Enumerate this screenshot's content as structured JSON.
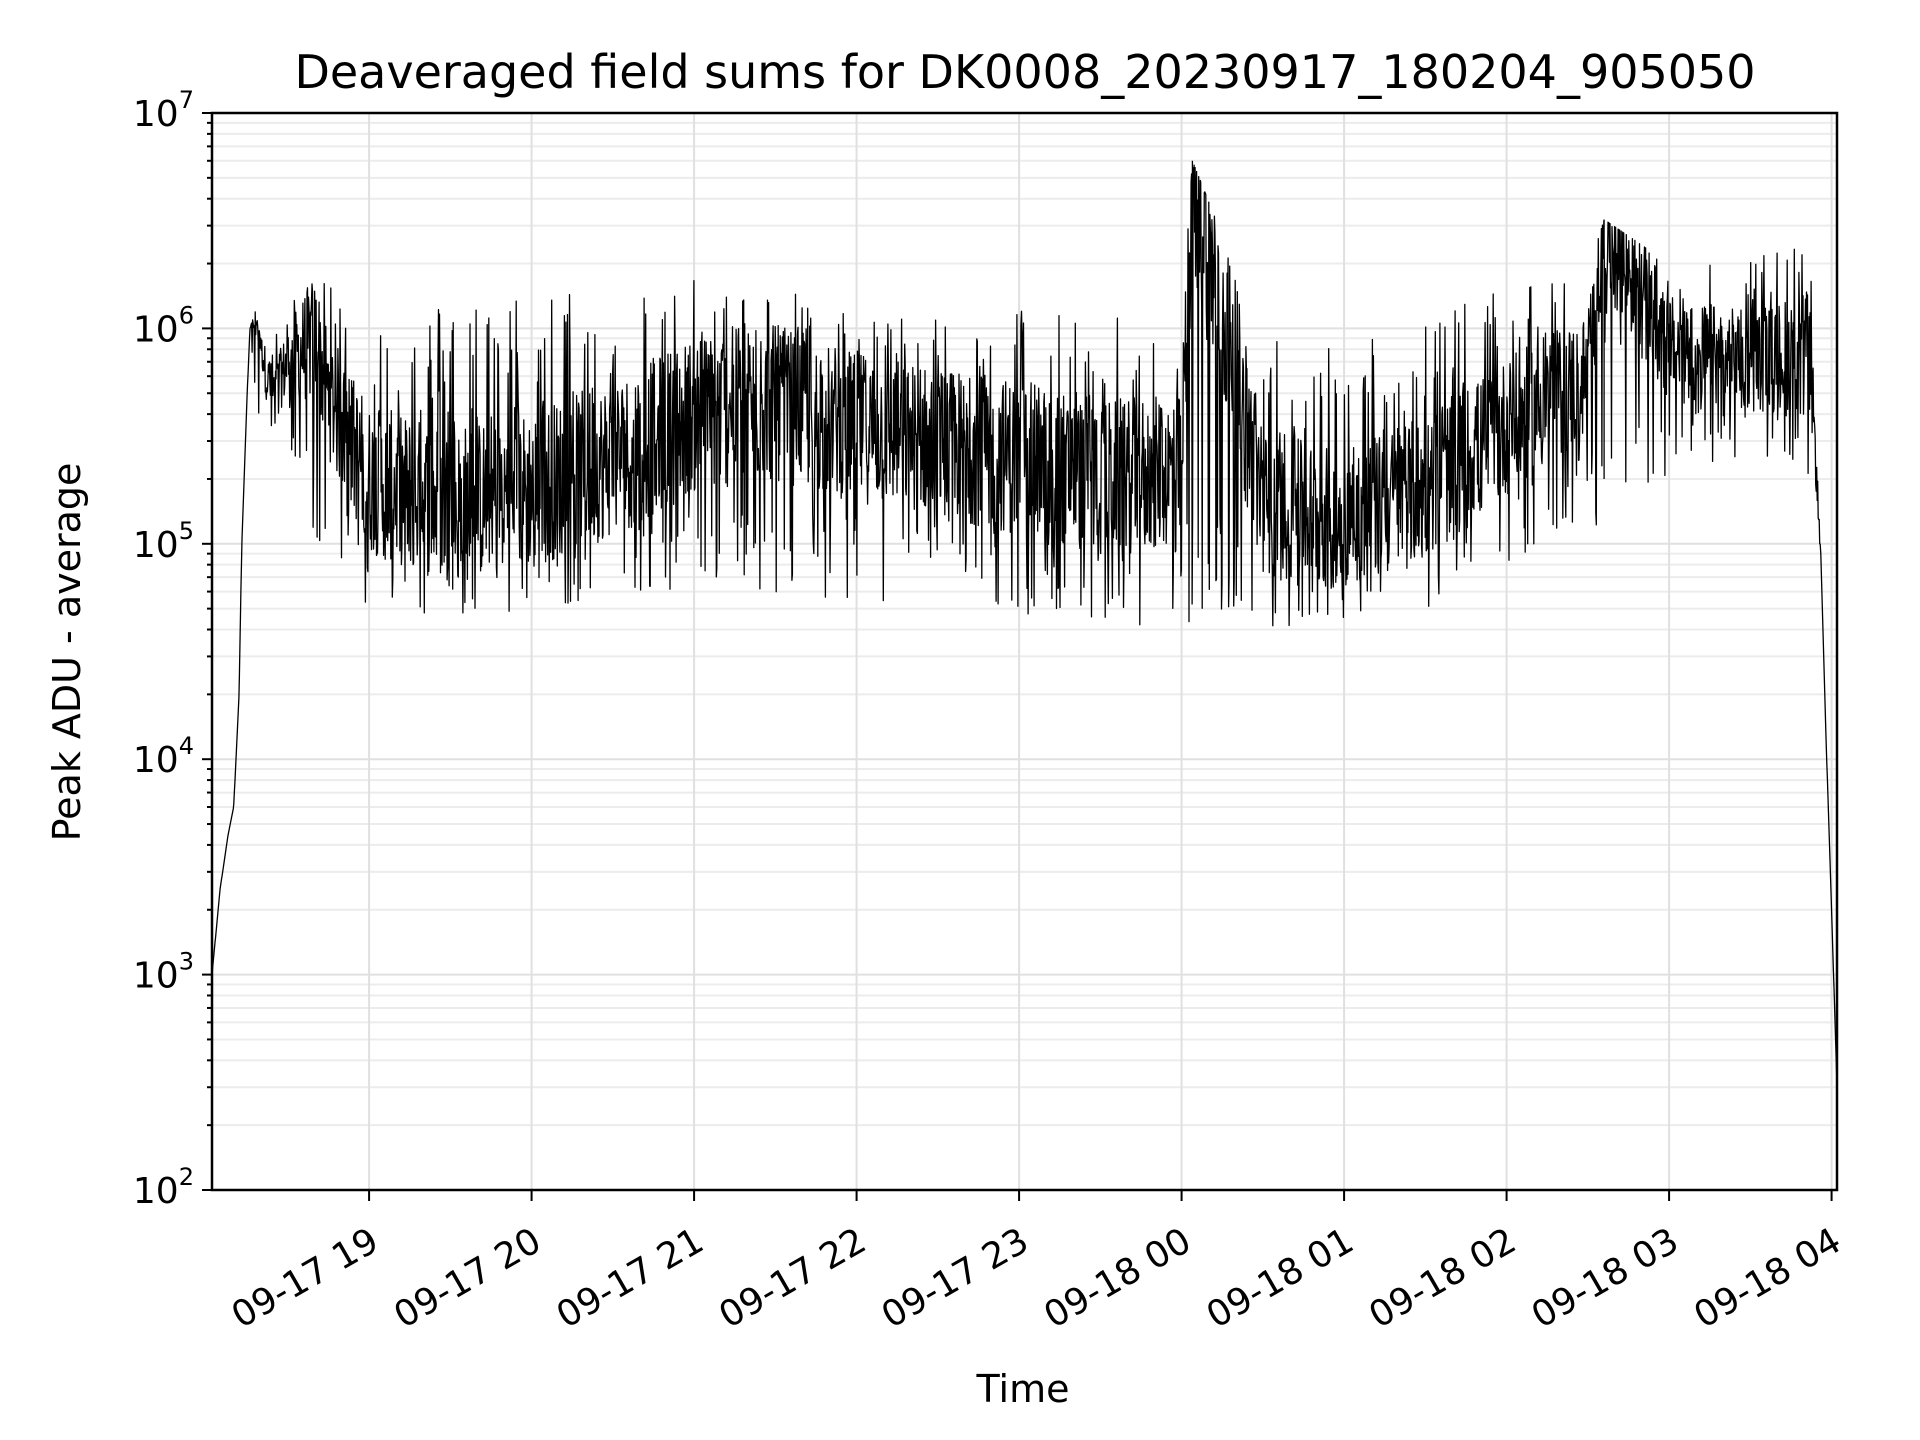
{
  "chart_data": {
    "type": "line",
    "title": "Deaveraged field sums for DK0008_20230917_180204_905050",
    "xlabel": "Time",
    "ylabel": "Peak ADU - average",
    "yscale": "log",
    "ylim": [
      100,
      10000000
    ],
    "xlim": [
      "2023-09-17 18:02",
      "2023-09-18 04:02"
    ],
    "grid": true,
    "line_color": "#000000",
    "y_ticks": [
      {
        "base": "10",
        "exp": "2"
      },
      {
        "base": "10",
        "exp": "3"
      },
      {
        "base": "10",
        "exp": "4"
      },
      {
        "base": "10",
        "exp": "5"
      },
      {
        "base": "10",
        "exp": "6"
      },
      {
        "base": "10",
        "exp": "7"
      }
    ],
    "x_ticks": [
      "09-17 19",
      "09-17 20",
      "09-17 21",
      "09-17 22",
      "09-17 23",
      "09-18 00",
      "09-18 01",
      "09-18 02",
      "09-18 03",
      "09-18 04"
    ],
    "series": [
      {
        "x": [
          "2023-09-17 18:02",
          "2023-09-17 18:05",
          "2023-09-17 18:08",
          "2023-09-17 18:10",
          "2023-09-17 18:12",
          "2023-09-17 18:13",
          "2023-09-17 18:15",
          "2023-09-17 18:16",
          "2023-09-17 18:18",
          "2023-09-17 18:20",
          "2023-09-17 18:22",
          "2023-09-17 18:25",
          "2023-09-17 18:30",
          "2023-09-17 18:40",
          "2023-09-17 18:45",
          "2023-09-17 19:00",
          "2023-09-17 19:30",
          "2023-09-17 20:00",
          "2023-09-17 20:30",
          "2023-09-17 21:00",
          "2023-09-17 21:30",
          "2023-09-17 22:00",
          "2023-09-17 22:30",
          "2023-09-17 23:00",
          "2023-09-17 23:30",
          "2023-09-18 00:00",
          "2023-09-18 00:04",
          "2023-09-18 00:30",
          "2023-09-18 01:00",
          "2023-09-18 01:30",
          "2023-09-18 02:00",
          "2023-09-18 02:30",
          "2023-09-18 02:36",
          "2023-09-18 03:00",
          "2023-09-18 03:30",
          "2023-09-18 03:52",
          "2023-09-18 03:56",
          "2023-09-18 03:58",
          "2023-09-18 04:00",
          "2023-09-18 04:02"
        ],
        "y": [
          1000,
          2500,
          4500,
          6000,
          20000,
          100000,
          500000,
          1000000,
          1200000,
          900000,
          600000,
          500000,
          700000,
          900000,
          500000,
          200000,
          150000,
          180000,
          250000,
          400000,
          450000,
          350000,
          300000,
          250000,
          200000,
          220000,
          6000000,
          150000,
          130000,
          180000,
          350000,
          600000,
          3200000,
          800000,
          700000,
          800000,
          90000,
          12000,
          2000,
          300
        ],
        "envelope_low": [
          1000,
          2500,
          4500,
          6000,
          20000,
          100000,
          500000,
          1000000,
          400000,
          350000,
          300000,
          300000,
          300000,
          100000,
          100000,
          50000,
          45000,
          50000,
          55000,
          55000,
          55000,
          50000,
          50000,
          45000,
          40000,
          40000,
          40000,
          38000,
          45000,
          50000,
          80000,
          120000,
          120000,
          200000,
          250000,
          200000,
          90000,
          12000,
          2000,
          300
        ],
        "envelope_high": [
          1000,
          2500,
          4500,
          6000,
          20000,
          100000,
          500000,
          1000000,
          1200000,
          900000,
          800000,
          900000,
          1400000,
          1700000,
          1600000,
          1200000,
          1400000,
          1500000,
          1600000,
          1700000,
          1600000,
          1300000,
          1200000,
          1300000,
          1200000,
          1000000,
          6000000,
          900000,
          900000,
          1200000,
          1500000,
          1800000,
          3200000,
          2000000,
          2200000,
          2600000,
          90000,
          12000,
          2000,
          300
        ]
      }
    ]
  }
}
